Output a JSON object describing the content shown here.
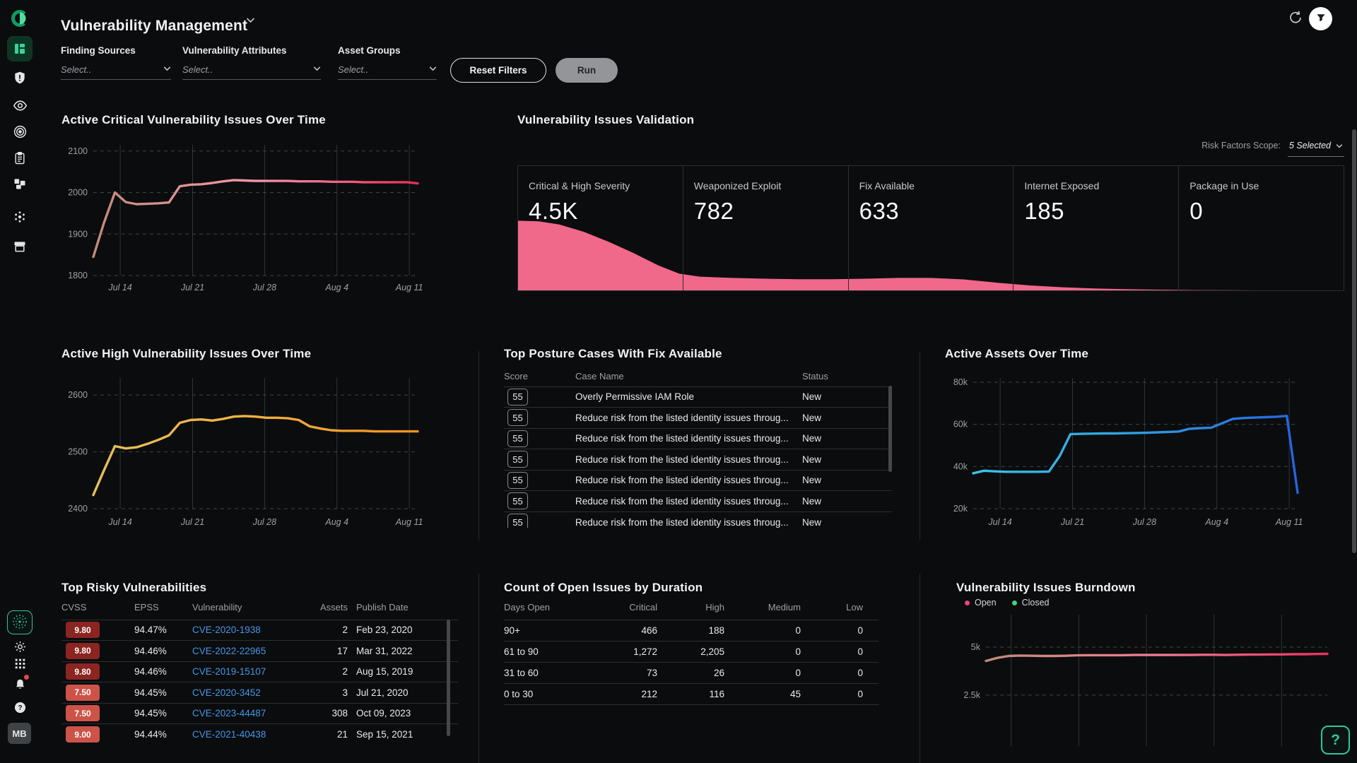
{
  "app": {
    "title": "Vulnerability Management",
    "header_icons": [
      "refresh-icon",
      "filter-icon"
    ]
  },
  "filters": {
    "groups": [
      {
        "label": "Finding Sources",
        "value": "Select.."
      },
      {
        "label": "Vulnerability Attributes",
        "value": "Select.."
      },
      {
        "label": "Asset Groups",
        "value": "Select.."
      }
    ],
    "reset_label": "Reset Filters",
    "run_label": "Run"
  },
  "sidebar": {
    "top_icons": [
      "dashboard-icon",
      "shield-alert-icon",
      "eye-icon",
      "target-icon",
      "clipboard-icon",
      "blocks-icon",
      "sparkle-icon",
      "archive-box-icon"
    ],
    "bottom_icons": [
      "ai-discovery-icon",
      "gear-icon",
      "apps-grid-icon",
      "bell-icon",
      "help-icon"
    ],
    "avatar_label": "MB"
  },
  "widgets": {
    "critical_title": "Active Critical Vulnerability Issues Over Time",
    "high_title": "Active High Vulnerability Issues Over Time",
    "assets_title": "Active Assets Over Time",
    "validation": {
      "title": "Vulnerability Issues Validation",
      "scope_label": "Risk Factors Scope:",
      "scope_value": "5 Selected",
      "cards": [
        {
          "label": "Critical & High Severity",
          "value": "4.5K"
        },
        {
          "label": "Weaponized Exploit",
          "value": "782"
        },
        {
          "label": "Fix Available",
          "value": "633"
        },
        {
          "label": "Internet Exposed",
          "value": "185"
        },
        {
          "label": "Package in Use",
          "value": "0"
        }
      ]
    },
    "posture_table": {
      "title": "Top Posture Cases With Fix Available",
      "columns": [
        "Score",
        "Case Name",
        "Status"
      ],
      "rows": [
        {
          "score": "55",
          "name": "Overly Permissive IAM Role",
          "status": "New"
        },
        {
          "score": "55",
          "name": "Reduce risk from the listed identity issues throug...",
          "status": "New"
        },
        {
          "score": "55",
          "name": "Reduce risk from the listed identity issues throug...",
          "status": "New"
        },
        {
          "score": "55",
          "name": "Reduce risk from the listed identity issues throug...",
          "status": "New"
        },
        {
          "score": "55",
          "name": "Reduce risk from the listed identity issues throug...",
          "status": "New"
        },
        {
          "score": "55",
          "name": "Reduce risk from the listed identity issues throug...",
          "status": "New"
        },
        {
          "score": "55",
          "name": "Reduce risk from the listed identity issues throug...",
          "status": "New"
        }
      ]
    },
    "risky_table": {
      "title": "Top Risky Vulnerabilities",
      "columns": [
        "CVSS",
        "EPSS",
        "Vulnerability",
        "Assets",
        "Publish Date"
      ],
      "rows": [
        {
          "cvss": "9.80",
          "level": "critical",
          "epss": "94.47%",
          "cve": "CVE-2020-1938",
          "assets": "2",
          "date": "Feb 23, 2020"
        },
        {
          "cvss": "9.80",
          "level": "critical",
          "epss": "94.46%",
          "cve": "CVE-2022-22965",
          "assets": "17",
          "date": "Mar 31, 2022"
        },
        {
          "cvss": "9.80",
          "level": "critical",
          "epss": "94.46%",
          "cve": "CVE-2019-15107",
          "assets": "2",
          "date": "Aug 15, 2019"
        },
        {
          "cvss": "7.50",
          "level": "high",
          "epss": "94.45%",
          "cve": "CVE-2020-3452",
          "assets": "3",
          "date": "Jul 21, 2020"
        },
        {
          "cvss": "7.50",
          "level": "high",
          "epss": "94.45%",
          "cve": "CVE-2023-44487",
          "assets": "308",
          "date": "Oct 09, 2023"
        },
        {
          "cvss": "9.00",
          "level": "high",
          "epss": "94.44%",
          "cve": "CVE-2021-40438",
          "assets": "21",
          "date": "Sep 15, 2021"
        }
      ]
    },
    "duration_table": {
      "title": "Count of Open Issues by Duration",
      "columns": [
        "Days Open",
        "Critical",
        "High",
        "Medium",
        "Low"
      ],
      "rows": [
        {
          "days": "90+",
          "critical": "466",
          "high": "188",
          "medium": "0",
          "low": "0"
        },
        {
          "days": "61 to 90",
          "critical": "1,272",
          "high": "2,205",
          "medium": "0",
          "low": "0"
        },
        {
          "days": "31 to 60",
          "critical": "73",
          "high": "26",
          "medium": "0",
          "low": "0"
        },
        {
          "days": "0 to 30",
          "critical": "212",
          "high": "116",
          "medium": "45",
          "low": "0"
        }
      ]
    },
    "burndown": {
      "title": "Vulnerability Issues Burndown",
      "legend": [
        {
          "label": "Open",
          "color": "#f0436e"
        },
        {
          "label": "Closed",
          "color": "#3fd47f"
        }
      ]
    }
  },
  "help_button_label": "?",
  "colors": {
    "background": "#0b0c0d",
    "accent_teal": "#2cc7a0",
    "funnel_pink": "#f0688a",
    "link_blue": "#4596e8",
    "cvss_critical": "#8b2521",
    "cvss_high": "#cc5348"
  },
  "chart_data": [
    {
      "id": "critical",
      "type": "line",
      "title": "Active Critical Vulnerability Issues Over Time",
      "ylim": [
        1800,
        2115
      ],
      "yticks": [
        {
          "v": 1800,
          "label": "1800"
        },
        {
          "v": 1900,
          "label": "1900"
        },
        {
          "v": 2000,
          "label": "2000"
        },
        {
          "v": 2100,
          "label": "2100"
        }
      ],
      "xticks": [
        {
          "f": 0.083,
          "label": "Jul 14"
        },
        {
          "f": 0.306,
          "label": "Jul 21"
        },
        {
          "f": 0.528,
          "label": "Jul 28"
        },
        {
          "f": 0.751,
          "label": "Aug 4"
        },
        {
          "f": 0.974,
          "label": "Aug 11"
        }
      ],
      "values": [
        1845,
        1928,
        2000,
        1977,
        1972,
        1973,
        1974,
        1976,
        2015,
        2019,
        2020,
        2023,
        2027,
        2030,
        2029,
        2028,
        2028,
        2028,
        2028,
        2027,
        2027,
        2027,
        2026,
        2026,
        2026,
        2025,
        2025,
        2025,
        2025,
        2025,
        2022
      ],
      "gradient": [
        "#c28a7c",
        "#f597ab",
        "#e62e5c"
      ],
      "margins": {
        "l": 47,
        "r": 29,
        "t": 9,
        "b": 28
      }
    },
    {
      "id": "high",
      "type": "line",
      "title": "Active High Vulnerability Issues Over Time",
      "ylim": [
        2400,
        2630
      ],
      "yticks": [
        {
          "v": 2400,
          "label": "2400"
        },
        {
          "v": 2500,
          "label": "2500"
        },
        {
          "v": 2600,
          "label": "2600"
        }
      ],
      "xticks": [
        {
          "f": 0.083,
          "label": "Jul 14"
        },
        {
          "f": 0.306,
          "label": "Jul 21"
        },
        {
          "f": 0.528,
          "label": "Jul 28"
        },
        {
          "f": 0.751,
          "label": "Aug 4"
        },
        {
          "f": 0.974,
          "label": "Aug 11"
        }
      ],
      "values": [
        2424,
        2468,
        2510,
        2506,
        2508,
        2514,
        2521,
        2529,
        2551,
        2556,
        2557,
        2555,
        2558,
        2562,
        2563,
        2562,
        2560,
        2560,
        2559,
        2556,
        2545,
        2541,
        2538,
        2537,
        2537,
        2537,
        2536,
        2536,
        2536,
        2536,
        2536
      ],
      "gradient": [
        "#e3c05c",
        "#f3b13e",
        "#ef8f21"
      ],
      "margins": {
        "l": 47,
        "r": 29,
        "t": 9,
        "b": 30
      }
    },
    {
      "id": "assets",
      "type": "line",
      "title": "Active Assets Over Time",
      "ylim": [
        20,
        82
      ],
      "yticks": [
        {
          "v": 20,
          "label": "20k"
        },
        {
          "v": 40,
          "label": "40k"
        },
        {
          "v": 60,
          "label": "60k"
        },
        {
          "v": 80,
          "label": "80k"
        }
      ],
      "xticks": [
        {
          "f": 0.083,
          "label": "Jul 14"
        },
        {
          "f": 0.306,
          "label": "Jul 21"
        },
        {
          "f": 0.528,
          "label": "Jul 28"
        },
        {
          "f": 0.751,
          "label": "Aug 4"
        },
        {
          "f": 0.974,
          "label": "Aug 11"
        }
      ],
      "values": [
        36.8,
        38.0,
        37.7,
        37.5,
        37.5,
        37.5,
        37.5,
        37.6,
        45.0,
        55.4,
        55.5,
        55.6,
        55.7,
        55.7,
        55.8,
        55.9,
        56.0,
        56.2,
        56.4,
        56.6,
        57.9,
        58.2,
        58.4,
        60.5,
        62.6,
        63.0,
        63.2,
        63.4,
        63.6,
        64.0,
        27.5
      ],
      "gradient": [
        "#3ec3e8",
        "#2f9fe0",
        "#2563e0"
      ],
      "margins": {
        "l": 47,
        "r": 29,
        "t": 9,
        "b": 30
      }
    },
    {
      "id": "burndown",
      "type": "line",
      "title": "Vulnerability Issues Burndown",
      "series_shown": "Open",
      "ylim": [
        -0.15,
        6.69
      ],
      "yticks": [
        {
          "v": 2.5,
          "label": "2.5k"
        },
        {
          "v": 5,
          "label": "5k"
        }
      ],
      "xticks": [
        {
          "f": 0.074,
          "label": ""
        },
        {
          "f": 0.272,
          "label": ""
        },
        {
          "f": 0.47,
          "label": ""
        },
        {
          "f": 0.668,
          "label": ""
        },
        {
          "f": 0.866,
          "label": ""
        }
      ],
      "values": [
        4.28,
        4.44,
        4.54,
        4.56,
        4.55,
        4.54,
        4.54,
        4.55,
        4.57,
        4.58,
        4.58,
        4.58,
        4.58,
        4.59,
        4.59,
        4.59,
        4.59,
        4.59,
        4.59,
        4.6,
        4.6,
        4.59,
        4.6,
        4.61,
        4.61,
        4.62,
        4.62,
        4.63,
        4.63,
        4.64,
        4.65
      ],
      "gradient": [
        "#c28a7c",
        "#ef7d92",
        "#e6325e"
      ],
      "margins": {
        "l": 47,
        "r": 10,
        "t": 8,
        "b": 24
      }
    },
    {
      "id": "validation_funnel",
      "type": "area",
      "title": "Vulnerability Issues Validation",
      "color": "#f0688a",
      "points": [
        [
          0,
          0.56
        ],
        [
          0.025,
          0.555
        ],
        [
          0.05,
          0.53
        ],
        [
          0.08,
          0.47
        ],
        [
          0.11,
          0.39
        ],
        [
          0.14,
          0.3
        ],
        [
          0.17,
          0.2
        ],
        [
          0.195,
          0.135
        ],
        [
          0.22,
          0.11
        ],
        [
          0.26,
          0.1
        ],
        [
          0.3,
          0.094
        ],
        [
          0.34,
          0.09
        ],
        [
          0.38,
          0.09
        ],
        [
          0.42,
          0.094
        ],
        [
          0.46,
          0.1
        ],
        [
          0.5,
          0.1
        ],
        [
          0.54,
          0.088
        ],
        [
          0.58,
          0.062
        ],
        [
          0.62,
          0.04
        ],
        [
          0.66,
          0.025
        ],
        [
          0.7,
          0.015
        ],
        [
          0.74,
          0.009
        ],
        [
          0.78,
          0.005
        ],
        [
          0.82,
          0.002
        ],
        [
          0.86,
          0.001
        ],
        [
          0.9,
          0
        ],
        [
          1,
          0
        ]
      ]
    }
  ]
}
